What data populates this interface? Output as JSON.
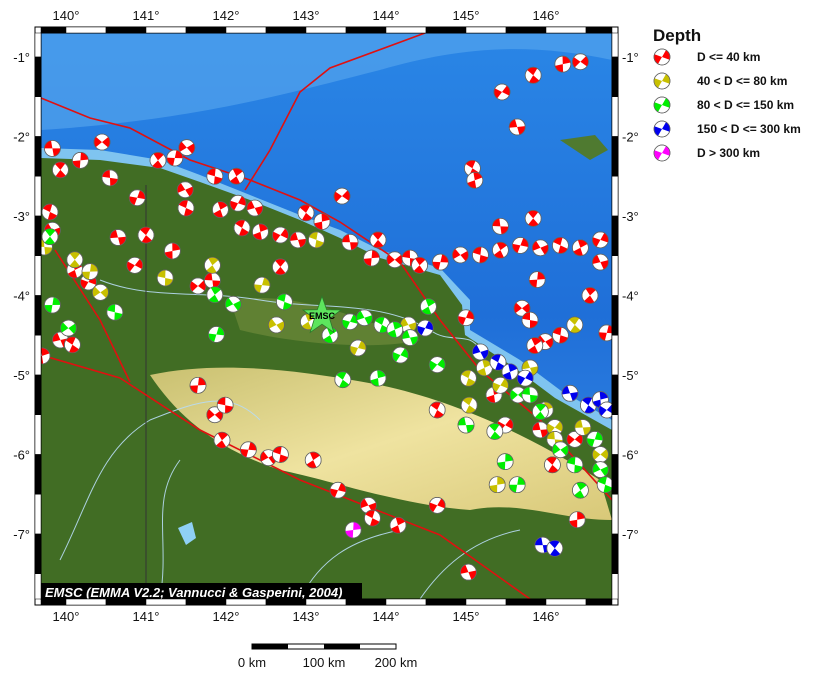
{
  "map": {
    "lon_ticks": [
      "140°",
      "141°",
      "142°",
      "143°",
      "144°",
      "145°",
      "146°"
    ],
    "lat_ticks": [
      "-1°",
      "-2°",
      "-3°",
      "-4°",
      "-5°",
      "-6°",
      "-7°"
    ],
    "lon_values": [
      140,
      141,
      142,
      143,
      144,
      145,
      146
    ],
    "lat_values": [
      -1,
      -2,
      -3,
      -4,
      -5,
      -6,
      -7
    ],
    "extent": {
      "lon": [
        139.69,
        146.83
      ],
      "lat": [
        -7.86,
        -0.7
      ]
    },
    "attribution": "EMSC (EMMA V2.2; Vannucci & Gasperini, 2004)",
    "marker": {
      "label": "EMSC",
      "lon": 143.2,
      "lat": -4.26,
      "icon": "star-icon",
      "color": "#5de65d"
    },
    "colors": {
      "ocean_deep": "#1f6fd8",
      "ocean_shallow": "#7fc4f0",
      "lowland": "#3f6a22",
      "highland": "#e8d68a",
      "fault": "#e01010"
    }
  },
  "legend": {
    "title": "Depth",
    "items": [
      {
        "label": "D <= 40 km",
        "color": "#ff0000"
      },
      {
        "label": "40 < D <= 80 km",
        "color": "#c8c000"
      },
      {
        "label": "80 < D <= 150 km",
        "color": "#00ee00"
      },
      {
        "label": "150 < D <= 300 km",
        "color": "#0000ee"
      },
      {
        "label": "D > 300 km",
        "color": "#ff00ff"
      }
    ]
  },
  "scale_bar": {
    "labels": [
      "0 km",
      "100 km",
      "200 km"
    ]
  },
  "events": [
    [
      139.83,
      -2.15,
      0
    ],
    [
      139.93,
      -2.42,
      0
    ],
    [
      140.18,
      -2.3,
      0
    ],
    [
      140.45,
      -2.07,
      0
    ],
    [
      140.55,
      -2.52,
      0
    ],
    [
      141.15,
      -2.3,
      0
    ],
    [
      141.36,
      -2.27,
      0
    ],
    [
      141.51,
      -2.14,
      0
    ],
    [
      141.86,
      -2.5,
      0
    ],
    [
      142.13,
      -2.5,
      0
    ],
    [
      140.89,
      -2.77,
      0
    ],
    [
      141.49,
      -2.67,
      0
    ],
    [
      141.5,
      -2.9,
      0
    ],
    [
      141.93,
      -2.92,
      0
    ],
    [
      142.15,
      -2.84,
      0
    ],
    [
      142.36,
      -2.9,
      0
    ],
    [
      142.2,
      -3.15,
      0
    ],
    [
      142.43,
      -3.2,
      0
    ],
    [
      142.68,
      -3.24,
      0
    ],
    [
      142.9,
      -3.3,
      0
    ],
    [
      143.0,
      -2.96,
      0
    ],
    [
      143.2,
      -3.07,
      0
    ],
    [
      143.45,
      -2.75,
      0
    ],
    [
      143.55,
      -3.33,
      0
    ],
    [
      143.9,
      -3.3,
      0
    ],
    [
      143.82,
      -3.53,
      0
    ],
    [
      144.11,
      -3.55,
      0
    ],
    [
      144.3,
      -3.53,
      0
    ],
    [
      144.42,
      -3.62,
      0
    ],
    [
      144.68,
      -3.58,
      0
    ],
    [
      144.93,
      -3.49,
      0
    ],
    [
      145.18,
      -3.49,
      0
    ],
    [
      145.43,
      -3.43,
      0
    ],
    [
      145.68,
      -3.37,
      0
    ],
    [
      145.93,
      -3.4,
      0
    ],
    [
      146.18,
      -3.37,
      0
    ],
    [
      146.43,
      -3.4,
      0
    ],
    [
      146.68,
      -3.3,
      0
    ],
    [
      146.68,
      -3.58,
      0
    ],
    [
      145.08,
      -2.4,
      0
    ],
    [
      145.11,
      -2.55,
      0
    ],
    [
      145.45,
      -1.44,
      0
    ],
    [
      145.64,
      -1.88,
      0
    ],
    [
      145.84,
      -1.23,
      0
    ],
    [
      146.21,
      -1.09,
      0
    ],
    [
      146.43,
      -1.06,
      0
    ],
    [
      145.43,
      -3.13,
      0
    ],
    [
      145.84,
      -3.03,
      0
    ],
    [
      145.89,
      -3.8,
      0
    ],
    [
      145.7,
      -4.16,
      0
    ],
    [
      145.8,
      -4.31,
      0
    ],
    [
      146.55,
      -4.0,
      0
    ],
    [
      146.76,
      -4.47,
      0
    ],
    [
      145.99,
      -4.58,
      0
    ],
    [
      146.18,
      -4.5,
      0
    ],
    [
      145.86,
      -4.63,
      0
    ],
    [
      145.0,
      -4.28,
      0
    ],
    [
      139.83,
      -3.18,
      0
    ],
    [
      139.8,
      -2.95,
      0
    ],
    [
      140.11,
      -3.68,
      0
    ],
    [
      140.28,
      -3.83,
      0
    ],
    [
      139.93,
      -4.56,
      0
    ],
    [
      140.08,
      -4.62,
      0
    ],
    [
      139.7,
      -4.76,
      0
    ],
    [
      140.86,
      -3.62,
      0
    ],
    [
      140.65,
      -3.27,
      0
    ],
    [
      141.0,
      -3.24,
      0
    ],
    [
      141.33,
      -3.44,
      0
    ],
    [
      141.65,
      -3.88,
      0
    ],
    [
      141.83,
      -3.81,
      0
    ],
    [
      142.68,
      -3.64,
      0
    ],
    [
      141.65,
      -5.13,
      0
    ],
    [
      141.86,
      -5.5,
      0
    ],
    [
      141.99,
      -5.38,
      0
    ],
    [
      141.95,
      -5.82,
      0
    ],
    [
      142.28,
      -5.94,
      0
    ],
    [
      142.53,
      -6.04,
      0
    ],
    [
      142.68,
      -6.0,
      0
    ],
    [
      143.09,
      -6.07,
      0
    ],
    [
      143.4,
      -6.45,
      0
    ],
    [
      143.78,
      -6.64,
      0
    ],
    [
      143.83,
      -6.8,
      0
    ],
    [
      144.15,
      -6.89,
      0
    ],
    [
      144.64,
      -6.64,
      0
    ],
    [
      145.03,
      -7.48,
      0
    ],
    [
      144.64,
      -5.44,
      0
    ],
    [
      145.35,
      -5.25,
      0
    ],
    [
      145.49,
      -5.63,
      0
    ],
    [
      145.93,
      -5.69,
      0
    ],
    [
      146.08,
      -6.13,
      0
    ],
    [
      146.39,
      -6.82,
      0
    ],
    [
      146.36,
      -5.81,
      0
    ],
    [
      139.73,
      -3.39,
      1
    ],
    [
      140.11,
      -3.55,
      1
    ],
    [
      140.3,
      -3.7,
      1
    ],
    [
      140.43,
      -3.96,
      1
    ],
    [
      141.24,
      -3.78,
      1
    ],
    [
      141.83,
      -3.62,
      1
    ],
    [
      142.45,
      -3.87,
      1
    ],
    [
      142.63,
      -4.37,
      1
    ],
    [
      143.13,
      -3.3,
      1
    ],
    [
      143.03,
      -4.33,
      1
    ],
    [
      143.65,
      -4.66,
      1
    ],
    [
      144.28,
      -4.37,
      1
    ],
    [
      145.03,
      -5.04,
      1
    ],
    [
      145.23,
      -4.91,
      1
    ],
    [
      145.43,
      -5.13,
      1
    ],
    [
      145.8,
      -4.91,
      1
    ],
    [
      145.04,
      -5.38,
      1
    ],
    [
      145.99,
      -5.44,
      1
    ],
    [
      146.11,
      -5.66,
      1
    ],
    [
      146.46,
      -5.66,
      1
    ],
    [
      146.36,
      -4.37,
      1
    ],
    [
      145.39,
      -6.38,
      1
    ],
    [
      146.68,
      -6.0,
      1
    ],
    [
      146.11,
      -5.81,
      1
    ],
    [
      139.8,
      -3.26,
      2
    ],
    [
      139.83,
      -4.12,
      2
    ],
    [
      140.03,
      -4.41,
      2
    ],
    [
      140.61,
      -4.21,
      2
    ],
    [
      141.86,
      -3.99,
      2
    ],
    [
      141.88,
      -4.49,
      2
    ],
    [
      142.09,
      -4.11,
      2
    ],
    [
      142.73,
      -4.08,
      2
    ],
    [
      143.3,
      -4.5,
      2
    ],
    [
      143.55,
      -4.33,
      2
    ],
    [
      143.73,
      -4.28,
      2
    ],
    [
      143.95,
      -4.37,
      2
    ],
    [
      144.11,
      -4.43,
      2
    ],
    [
      144.18,
      -4.75,
      2
    ],
    [
      144.3,
      -4.53,
      2
    ],
    [
      143.46,
      -5.06,
      2
    ],
    [
      143.9,
      -5.04,
      2
    ],
    [
      144.64,
      -4.87,
      2
    ],
    [
      145.0,
      -5.63,
      2
    ],
    [
      145.36,
      -5.71,
      2
    ],
    [
      145.49,
      -6.09,
      2
    ],
    [
      145.65,
      -5.25,
      2
    ],
    [
      145.8,
      -5.25,
      2
    ],
    [
      145.93,
      -5.46,
      2
    ],
    [
      145.64,
      -6.38,
      2
    ],
    [
      146.18,
      -5.94,
      2
    ],
    [
      146.36,
      -6.13,
      2
    ],
    [
      146.43,
      -6.45,
      2
    ],
    [
      146.61,
      -5.81,
      2
    ],
    [
      146.68,
      -6.19,
      2
    ],
    [
      146.74,
      -6.38,
      2
    ],
    [
      144.53,
      -4.14,
      2
    ],
    [
      144.49,
      -4.41,
      3
    ],
    [
      145.18,
      -4.71,
      3
    ],
    [
      145.4,
      -4.84,
      3
    ],
    [
      145.55,
      -4.96,
      3
    ],
    [
      145.74,
      -5.04,
      3
    ],
    [
      146.3,
      -5.23,
      3
    ],
    [
      146.53,
      -5.38,
      3
    ],
    [
      146.68,
      -5.31,
      3
    ],
    [
      146.76,
      -5.44,
      3
    ],
    [
      145.96,
      -7.14,
      3
    ],
    [
      146.11,
      -7.18,
      3
    ],
    [
      143.59,
      -6.95,
      4
    ]
  ]
}
